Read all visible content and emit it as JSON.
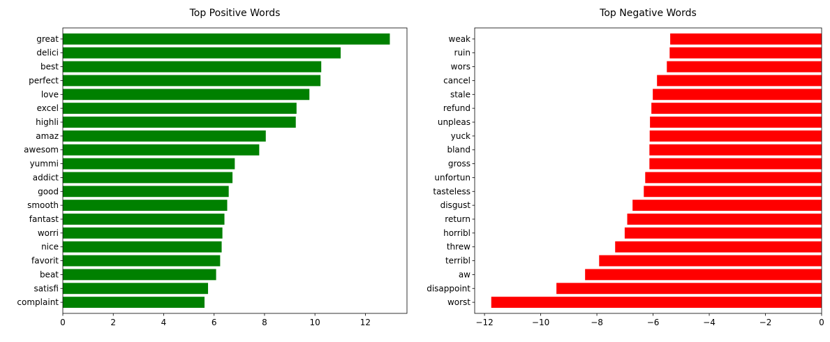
{
  "chart_data": [
    {
      "type": "bar",
      "orientation": "horizontal",
      "title": "Top Positive Words",
      "xlabel": "",
      "ylabel": "",
      "xlim": [
        0,
        13.65
      ],
      "xticks": [
        0,
        2,
        4,
        6,
        8,
        10,
        12
      ],
      "xtick_labels": [
        "0",
        "2",
        "4",
        "6",
        "8",
        "10",
        "12"
      ],
      "grid": false,
      "color": "#008000",
      "categories": [
        "great",
        "delici",
        "best",
        "perfect",
        "love",
        "excel",
        "highli",
        "amaz",
        "awesom",
        "yummi",
        "addict",
        "good",
        "smooth",
        "fantast",
        "worri",
        "nice",
        "favorit",
        "beat",
        "satisfi",
        "complaint"
      ],
      "values": [
        12.97,
        11.02,
        10.25,
        10.22,
        9.78,
        9.27,
        9.24,
        8.05,
        7.79,
        6.82,
        6.73,
        6.58,
        6.52,
        6.41,
        6.33,
        6.3,
        6.24,
        6.08,
        5.76,
        5.62
      ]
    },
    {
      "type": "bar",
      "orientation": "horizontal",
      "title": "Top Negative Words",
      "xlabel": "",
      "ylabel": "",
      "xlim": [
        -12.35,
        0
      ],
      "xticks": [
        -12,
        -10,
        -8,
        -6,
        -4,
        -2,
        0
      ],
      "xtick_labels": [
        "−12",
        "−10",
        "−8",
        "−6",
        "−4",
        "−2",
        "0"
      ],
      "grid": false,
      "color": "#ff0000",
      "categories": [
        "weak",
        "ruin",
        "wors",
        "cancel",
        "stale",
        "refund",
        "unpleas",
        "yuck",
        "bland",
        "gross",
        "unfortun",
        "tasteless",
        "disgust",
        "return",
        "horribl",
        "threw",
        "terribl",
        "aw",
        "disappoint",
        "worst"
      ],
      "values": [
        -5.39,
        -5.41,
        -5.51,
        -5.86,
        -6.01,
        -6.06,
        -6.11,
        -6.12,
        -6.13,
        -6.13,
        -6.28,
        -6.33,
        -6.73,
        -6.92,
        -7.01,
        -7.35,
        -7.92,
        -8.42,
        -9.44,
        -11.76
      ]
    }
  ]
}
